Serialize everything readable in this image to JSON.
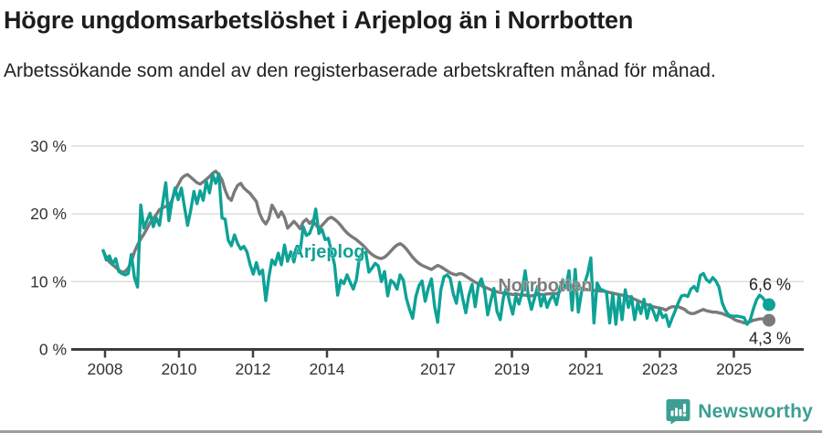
{
  "header": {
    "title": "Högre ungdomsarbetslöshet i Arjeplog än i Norrbotten",
    "subtitle": "Arbetssökande som andel av den registerbaserade arbetskraften månad för månad."
  },
  "chart_data": {
    "type": "line",
    "frequency": "monthly",
    "x_start": "2008-01",
    "x_end": "2025-10",
    "ylim": [
      0,
      30
    ],
    "unit": "%",
    "grid": "horizontal",
    "y_ticks": [
      {
        "value": 0,
        "label": "0 %"
      },
      {
        "value": 10,
        "label": "10 %"
      },
      {
        "value": 20,
        "label": "20 %"
      },
      {
        "value": 30,
        "label": "30 %"
      }
    ],
    "x_ticks": [
      {
        "year": 2008,
        "label": "2008"
      },
      {
        "year": 2010,
        "label": "2010"
      },
      {
        "year": 2012,
        "label": "2012"
      },
      {
        "year": 2014,
        "label": "2014"
      },
      {
        "year": 2017,
        "label": "2017"
      },
      {
        "year": 2019,
        "label": "2019"
      },
      {
        "year": 2021,
        "label": "2021"
      },
      {
        "year": 2023,
        "label": "2023"
      },
      {
        "year": 2025,
        "label": "2025"
      }
    ],
    "series": [
      {
        "name": "Norrbotten",
        "color": "#7a7a7a",
        "label_color": "#7d7d7d",
        "end_label": "4,3 %",
        "values": [
          14.5,
          13.6,
          12.9,
          12.5,
          12.1,
          11.7,
          11.4,
          11.5,
          12.0,
          12.9,
          14.4,
          15.4,
          16.3,
          17.0,
          17.8,
          18.7,
          19.3,
          19.9,
          20.6,
          20.9,
          21.1,
          21.2,
          22.0,
          23.4,
          24.3,
          25.2,
          25.6,
          25.8,
          25.4,
          25.0,
          24.6,
          24.4,
          24.7,
          25.1,
          25.5,
          26.0,
          26.3,
          25.8,
          25.0,
          23.5,
          22.4,
          22.0,
          23.3,
          24.2,
          24.5,
          23.8,
          23.4,
          23.0,
          22.4,
          21.8,
          20.1,
          19.1,
          18.5,
          19.3,
          21.3,
          20.5,
          19.5,
          20.3,
          19.5,
          17.9,
          18.4,
          18.9,
          18.4,
          17.8,
          18.8,
          19.2,
          18.6,
          19.0,
          18.4,
          17.8,
          18.3,
          18.8,
          19.3,
          19.5,
          19.2,
          18.8,
          18.3,
          17.7,
          17.2,
          16.8,
          16.5,
          16.2,
          15.8,
          15.4,
          14.9,
          14.4,
          14.0,
          13.7,
          13.5,
          13.4,
          13.6,
          14.0,
          14.5,
          15.0,
          15.4,
          15.6,
          15.3,
          14.8,
          14.2,
          13.6,
          13.1,
          12.7,
          12.4,
          12.2,
          12.0,
          11.8,
          12.1,
          12.4,
          12.2,
          11.9,
          11.6,
          11.3,
          11.1,
          11.0,
          11.2,
          11.1,
          10.8,
          10.5,
          10.2,
          9.9,
          9.7,
          9.4,
          9.2,
          9.0,
          8.8,
          8.6,
          8.5,
          8.4,
          8.3,
          8.2,
          8.2,
          8.1,
          8.2,
          8.1,
          8.0,
          8.0,
          7.9,
          7.9,
          8.0,
          8.1,
          8.1,
          8.1,
          8.2,
          8.2,
          8.3,
          8.2,
          8.5,
          9.0,
          9.2,
          9.3,
          9.3,
          9.2,
          9.1,
          9.0,
          8.9,
          8.8,
          8.8,
          8.7,
          8.7,
          8.6,
          8.6,
          8.5,
          8.4,
          8.3,
          8.2,
          8.1,
          8.0,
          7.9,
          7.8,
          7.6,
          7.4,
          7.2,
          7.0,
          6.8,
          6.6,
          6.5,
          6.3,
          6.2,
          6.1,
          6.0,
          5.8,
          6.1,
          6.3,
          6.3,
          6.3,
          6.1,
          5.9,
          5.5,
          5.3,
          5.3,
          5.5,
          5.7,
          5.9,
          5.7,
          5.6,
          5.5,
          5.5,
          5.4,
          5.3,
          5.1,
          4.9,
          4.7,
          4.4,
          4.2,
          4.1,
          3.9,
          3.9,
          4.1,
          4.3,
          4.4,
          4.5,
          4.5,
          4.4,
          4.3
        ]
      },
      {
        "name": "Arjeplog",
        "color": "#0ea296",
        "label_color": "#12a296",
        "end_label": "6,6 %",
        "values": [
          14.6,
          13.2,
          13.8,
          12.6,
          13.4,
          11.5,
          11.2,
          11.0,
          11.2,
          14.0,
          10.6,
          9.2,
          21.3,
          17.9,
          19.0,
          20.1,
          18.1,
          19.4,
          18.3,
          21.5,
          24.6,
          19.0,
          21.9,
          23.8,
          22.1,
          23.8,
          21.0,
          18.3,
          20.5,
          23.3,
          21.5,
          23.4,
          22.0,
          24.8,
          23.1,
          25.8,
          24.5,
          25.9,
          19.4,
          19.2,
          16.1,
          15.3,
          16.9,
          15.6,
          14.8,
          15.2,
          14.4,
          12.5,
          11.1,
          12.8,
          11.1,
          11.7,
          7.2,
          10.7,
          13.2,
          12.5,
          14.2,
          12.5,
          15.4,
          13.0,
          14.4,
          12.9,
          15.0,
          14.4,
          18.1,
          16.8,
          17.1,
          18.3,
          20.7,
          17.1,
          17.7,
          16.2,
          16.4,
          14.5,
          12.5,
          8.0,
          10.2,
          9.7,
          11.0,
          9.9,
          8.9,
          10.3,
          13.6,
          14.3,
          14.3,
          11.4,
          12.0,
          12.7,
          12.3,
          10.0,
          11.5,
          7.9,
          10.2,
          9.8,
          8.9,
          11.0,
          10.2,
          7.5,
          5.9,
          4.6,
          7.8,
          9.4,
          10.1,
          7.1,
          9.0,
          10.4,
          6.4,
          4.0,
          8.7,
          10.7,
          11.0,
          10.5,
          8.2,
          6.8,
          9.9,
          7.5,
          5.4,
          8.0,
          9.6,
          6.3,
          9.5,
          10.4,
          8.8,
          5.1,
          7.2,
          9.0,
          5.6,
          4.4,
          7.6,
          9.2,
          7.0,
          5.2,
          7.9,
          6.7,
          8.4,
          11.6,
          7.8,
          5.9,
          7.6,
          9.3,
          6.4,
          8.0,
          6.2,
          7.4,
          8.0,
          6.6,
          8.9,
          10.3,
          9.1,
          11.6,
          5.8,
          11.8,
          5.5,
          8.4,
          9.8,
          11.2,
          13.5,
          3.9,
          9.8,
          8.9,
          8.7,
          8.5,
          3.9,
          8.2,
          3.7,
          8.0,
          4.4,
          8.8,
          6.2,
          7.8,
          4.4,
          6.9,
          5.3,
          7.4,
          4.6,
          6.6,
          5.6,
          4.3,
          5.9,
          4.7,
          5.1,
          3.4,
          4.6,
          5.7,
          6.9,
          7.9,
          8.0,
          7.8,
          8.9,
          9.3,
          8.6,
          10.9,
          11.2,
          10.3,
          9.9,
          10.6,
          10.1,
          9.2,
          6.9,
          5.8,
          5.1,
          4.9,
          4.9,
          4.9,
          4.8,
          4.7,
          3.7,
          4.4,
          6.0,
          7.3,
          8.0,
          7.6,
          7.0,
          6.6
        ]
      }
    ],
    "style": {
      "grid_color": "#dcdcdc",
      "axis_color": "#3d3d3d",
      "tick_text_color": "#333333",
      "end_label_color": "#222222"
    }
  },
  "footer": {
    "brand": "Newsworthy",
    "brand_color": "#3d9e94",
    "logo_icon": "bar-chart-speech-bubble"
  }
}
